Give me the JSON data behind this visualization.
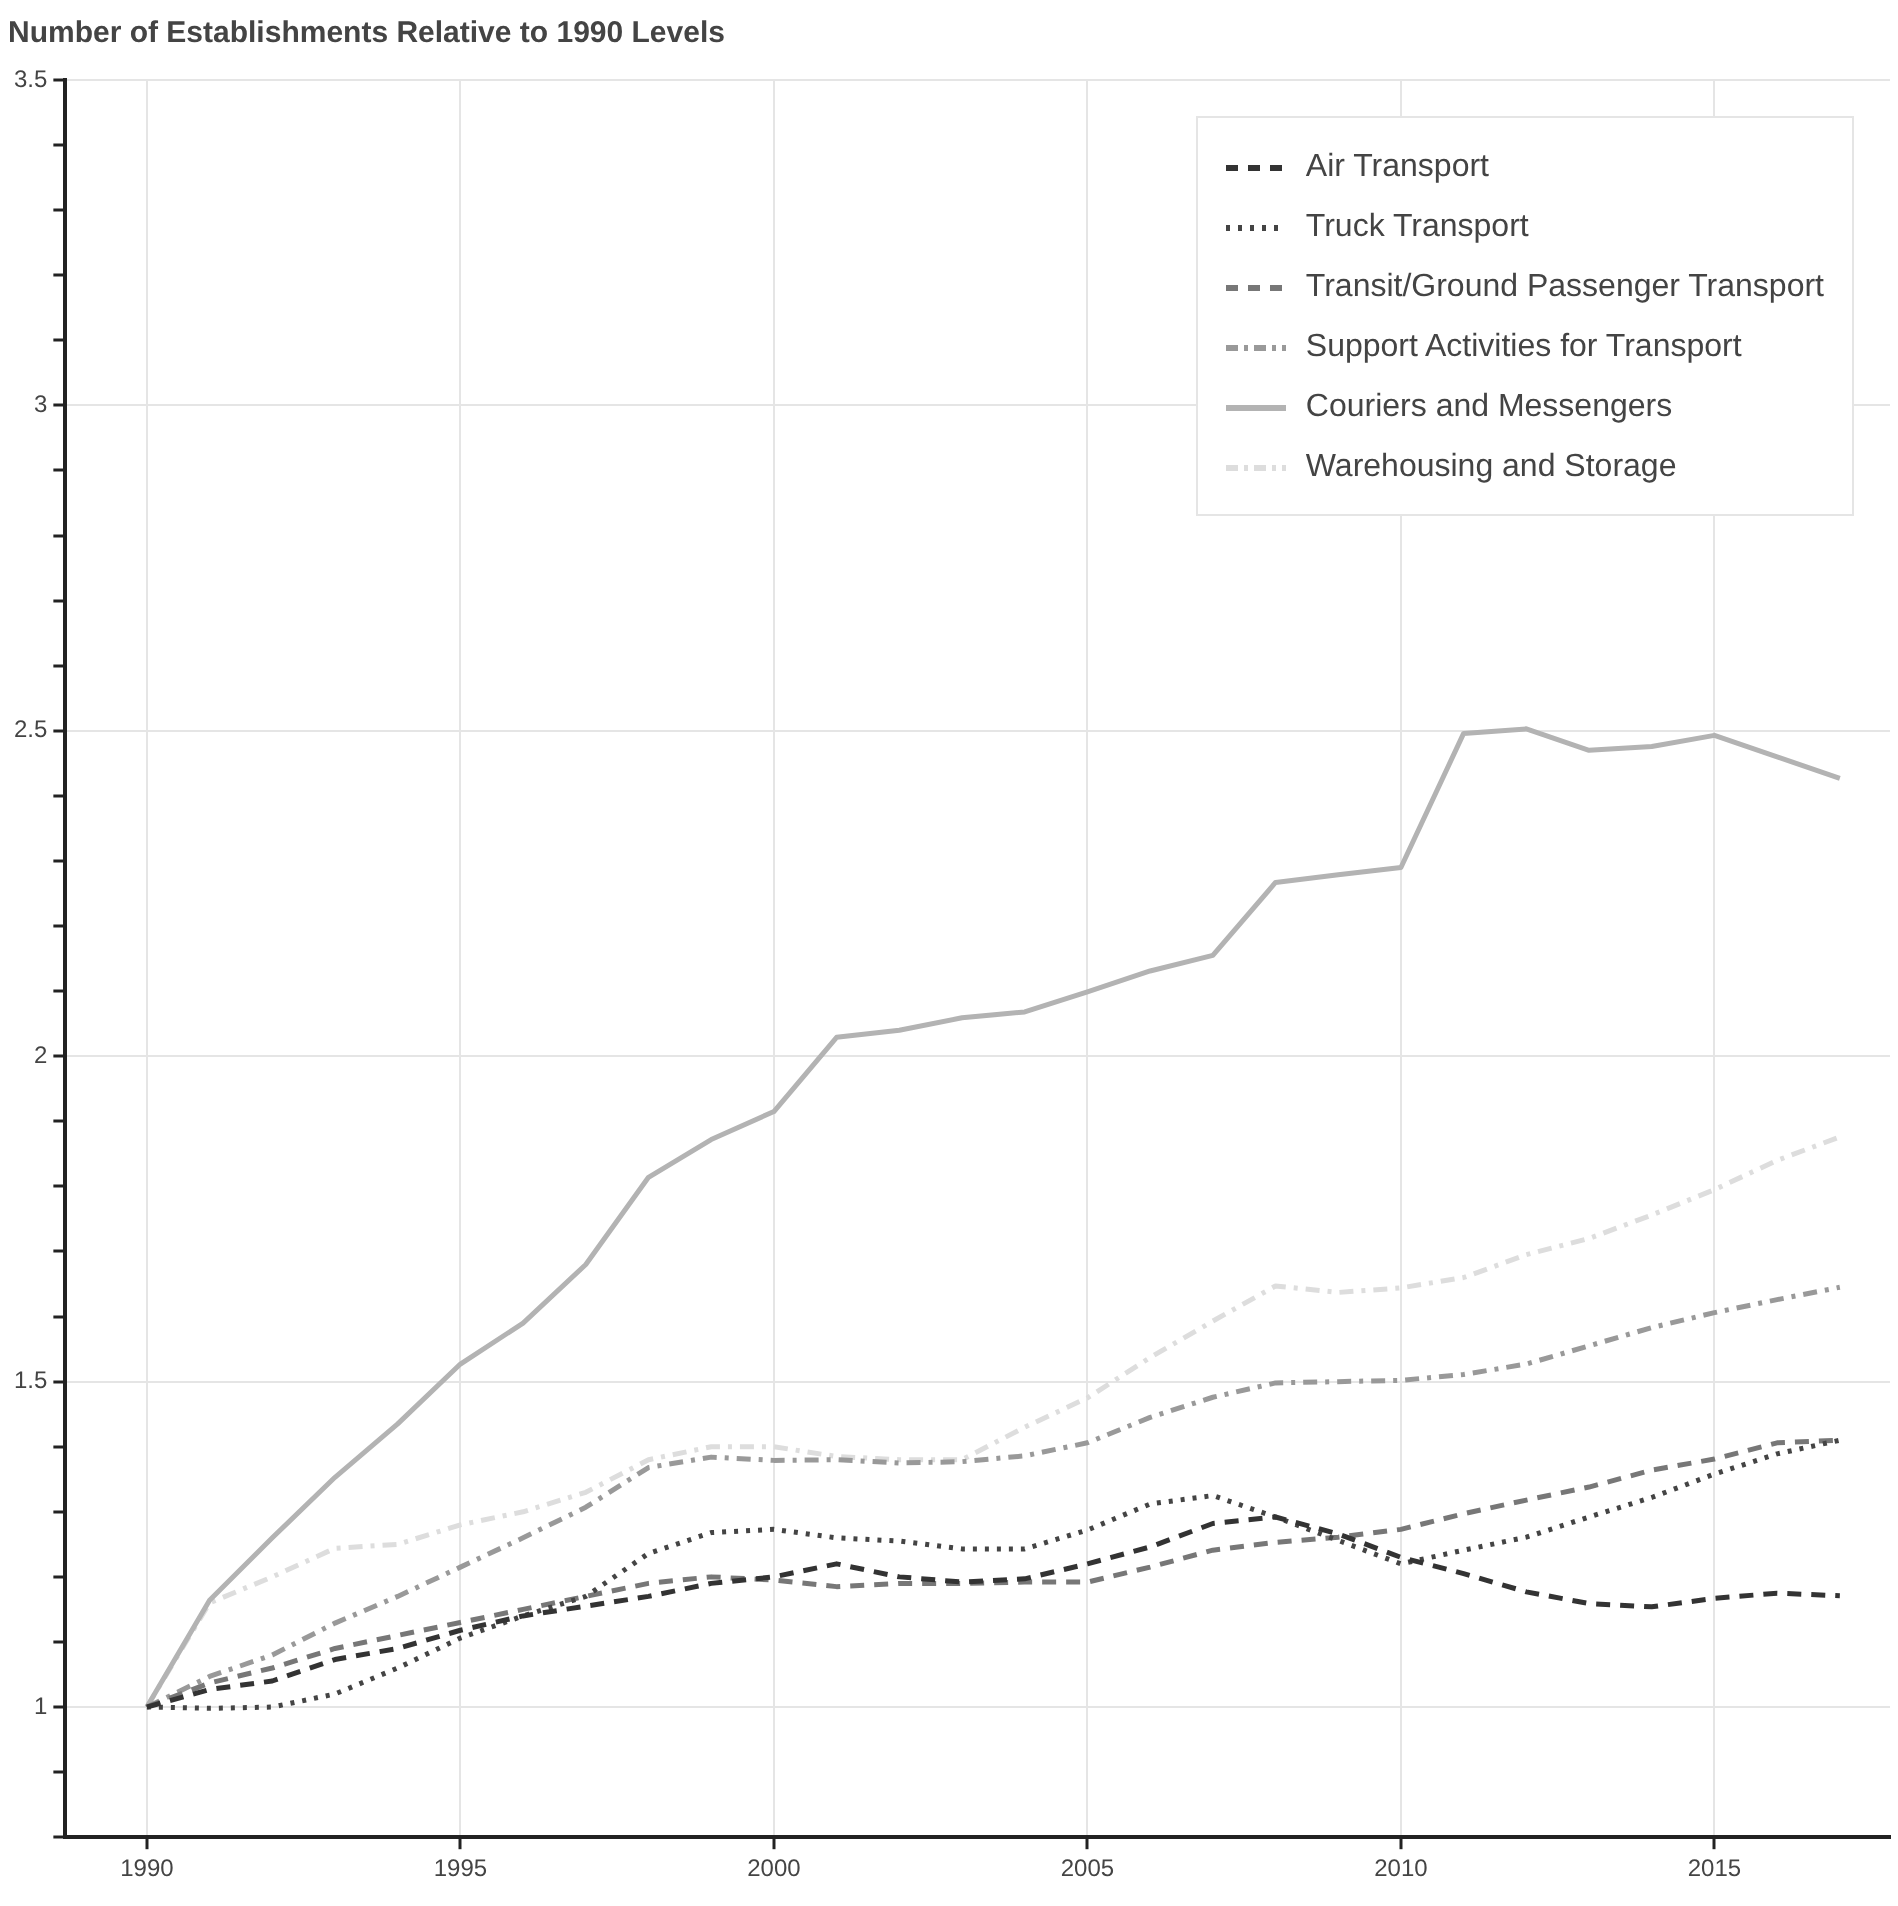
{
  "chart_data": {
    "type": "line",
    "title": "Number of Establishments Relative to 1990 Levels",
    "x": [
      1990,
      1991,
      1992,
      1993,
      1994,
      1995,
      1996,
      1997,
      1998,
      1999,
      2000,
      2001,
      2002,
      2003,
      2004,
      2005,
      2006,
      2007,
      2008,
      2009,
      2010,
      2011,
      2012,
      2013,
      2014,
      2015,
      2016,
      2017
    ],
    "series": [
      {
        "name": "Air Transport",
        "color": "#333333",
        "line_style": "dashed",
        "values": [
          1,
          1.027,
          1.04,
          1.073,
          1.09,
          1.118,
          1.14,
          1.155,
          1.17,
          1.19,
          1.2,
          1.22,
          1.2,
          1.192,
          1.197,
          1.22,
          1.246,
          1.282,
          1.292,
          1.266,
          1.23,
          1.205,
          1.177,
          1.159,
          1.154,
          1.167,
          1.175,
          1.171
        ]
      },
      {
        "name": "Truck Transport",
        "color": "#444444",
        "line_style": "dotted",
        "values": [
          1,
          0.998,
          1.0,
          1.02,
          1.06,
          1.106,
          1.14,
          1.17,
          1.236,
          1.268,
          1.273,
          1.26,
          1.255,
          1.243,
          1.243,
          1.272,
          1.312,
          1.325,
          1.292,
          1.256,
          1.22,
          1.241,
          1.261,
          1.292,
          1.322,
          1.358,
          1.389,
          1.41
        ]
      },
      {
        "name": "Transit/Ground Passenger Transport",
        "color": "#777777",
        "line_style": "dashed",
        "values": [
          1,
          1.037,
          1.06,
          1.09,
          1.11,
          1.13,
          1.15,
          1.17,
          1.19,
          1.2,
          1.195,
          1.185,
          1.19,
          1.19,
          1.192,
          1.192,
          1.215,
          1.241,
          1.253,
          1.261,
          1.273,
          1.297,
          1.318,
          1.338,
          1.364,
          1.381,
          1.406,
          1.41
        ]
      },
      {
        "name": "Support Activities for Transport",
        "color": "#999999",
        "line_style": "dashdot",
        "values": [
          1,
          1.047,
          1.08,
          1.129,
          1.17,
          1.215,
          1.26,
          1.307,
          1.368,
          1.384,
          1.379,
          1.38,
          1.375,
          1.377,
          1.386,
          1.406,
          1.445,
          1.476,
          1.498,
          1.5,
          1.502,
          1.511,
          1.527,
          1.555,
          1.583,
          1.606,
          1.626,
          1.645
        ]
      },
      {
        "name": "Couriers and Messengers",
        "color": "#b3b3b3",
        "line_style": "solid",
        "values": [
          1,
          1.164,
          1.26,
          1.353,
          1.435,
          1.527,
          1.59,
          1.68,
          1.814,
          1.872,
          1.915,
          2.029,
          2.04,
          2.059,
          2.068,
          2.099,
          2.131,
          2.155,
          2.267,
          2.279,
          2.29,
          2.496,
          2.503,
          2.47,
          2.476,
          2.493,
          2.46,
          2.427
        ]
      },
      {
        "name": "Warehousing and Storage",
        "color": "#dddddd",
        "line_style": "dashdot",
        "values": [
          1,
          1.16,
          1.2,
          1.244,
          1.25,
          1.28,
          1.3,
          1.33,
          1.38,
          1.4,
          1.4,
          1.385,
          1.38,
          1.38,
          1.43,
          1.475,
          1.537,
          1.593,
          1.647,
          1.637,
          1.644,
          1.66,
          1.695,
          1.72,
          1.756,
          1.795,
          1.84,
          1.876
        ]
      }
    ],
    "xlim": [
      1988.7,
      2017.8
    ],
    "xticks": [
      1990,
      1995,
      2000,
      2005,
      2010,
      2015
    ],
    "ylim": [
      0.8,
      3.5
    ],
    "yticks": [
      {
        "value": 0.8,
        "label": null
      },
      {
        "value": 0.9,
        "label": null
      },
      1,
      {
        "value": 1.1,
        "label": null
      },
      {
        "value": 1.2,
        "label": null
      },
      {
        "value": 1.3,
        "label": null
      },
      {
        "value": 1.4,
        "label": null
      },
      1.5,
      {
        "value": 1.6,
        "label": null
      },
      {
        "value": 1.7,
        "label": null
      },
      {
        "value": 1.8,
        "label": null
      },
      {
        "value": 1.9,
        "label": null
      },
      2,
      {
        "value": 2.1,
        "label": null
      },
      {
        "value": 2.2,
        "label": null
      },
      {
        "value": 2.3,
        "label": null
      },
      {
        "value": 2.4,
        "label": null
      },
      2.5,
      {
        "value": 2.6,
        "label": null
      },
      {
        "value": 2.7,
        "label": null
      },
      {
        "value": 2.8,
        "label": null
      },
      {
        "value": 2.9,
        "label": null
      },
      3,
      {
        "value": 3.1,
        "label": null
      },
      {
        "value": 3.2,
        "label": null
      },
      {
        "value": 3.3,
        "label": null
      },
      {
        "value": 3.4,
        "label": null
      },
      3.5
    ],
    "grid": true,
    "legend": "top right",
    "marker": "none"
  }
}
